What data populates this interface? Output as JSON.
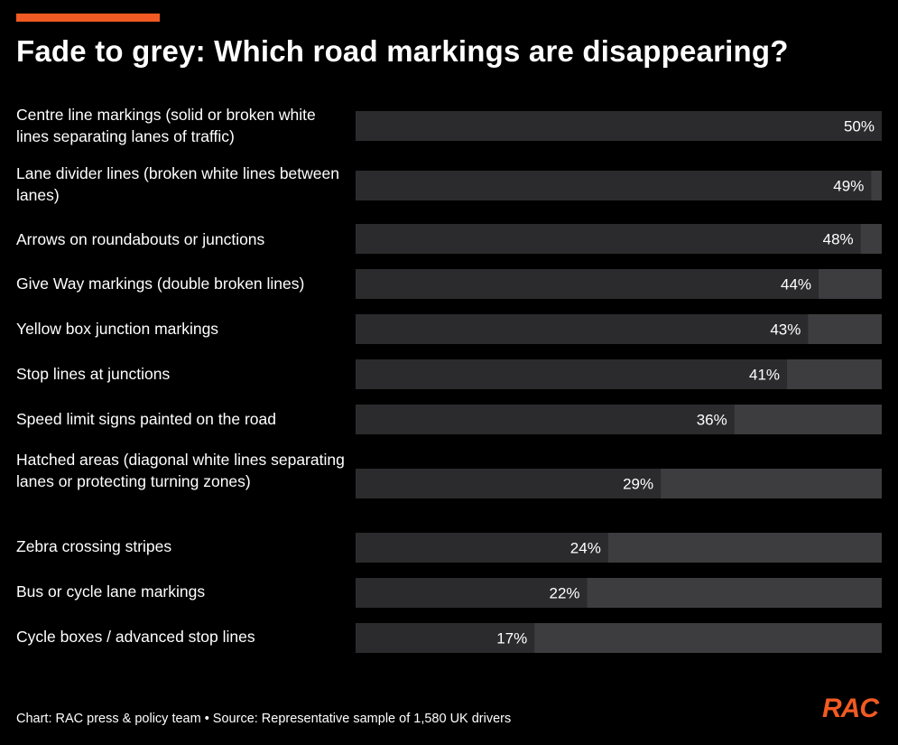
{
  "title": "Fade to grey: Which road markings are disappearing?",
  "footer": "Chart: RAC press & policy team • Source: Representative sample of 1,580 UK drivers",
  "logo_text": "RAC",
  "colors": {
    "background": "#000000",
    "accent": "#f15a22",
    "bar_track": "#3d3d3f",
    "bar_fill": "#2b2b2d",
    "text": "#ffffff"
  },
  "chart_data": {
    "type": "bar",
    "orientation": "horizontal",
    "title": "Fade to grey: Which road markings are disappearing?",
    "categories": [
      "Centre line markings (solid or broken white lines separating lanes of traffic)",
      "Lane divider lines (broken white lines between lanes)",
      "Arrows on roundabouts or junctions",
      "Give Way markings (double broken lines)",
      "Yellow box junction markings",
      "Stop lines at junctions",
      "Speed limit signs painted on the road",
      "Hatched areas (diagonal white lines separating lanes or protecting turning zones)",
      "Zebra crossing stripes",
      "Bus or cycle lane markings",
      "Cycle boxes / advanced stop lines"
    ],
    "values": [
      50,
      49,
      48,
      44,
      43,
      41,
      36,
      29,
      24,
      22,
      17
    ],
    "value_labels": [
      "50%",
      "49%",
      "48%",
      "44%",
      "43%",
      "41%",
      "36%",
      "29%",
      "24%",
      "22%",
      "17%"
    ],
    "xlim": [
      0,
      50
    ],
    "grid": false,
    "legend": "none"
  }
}
